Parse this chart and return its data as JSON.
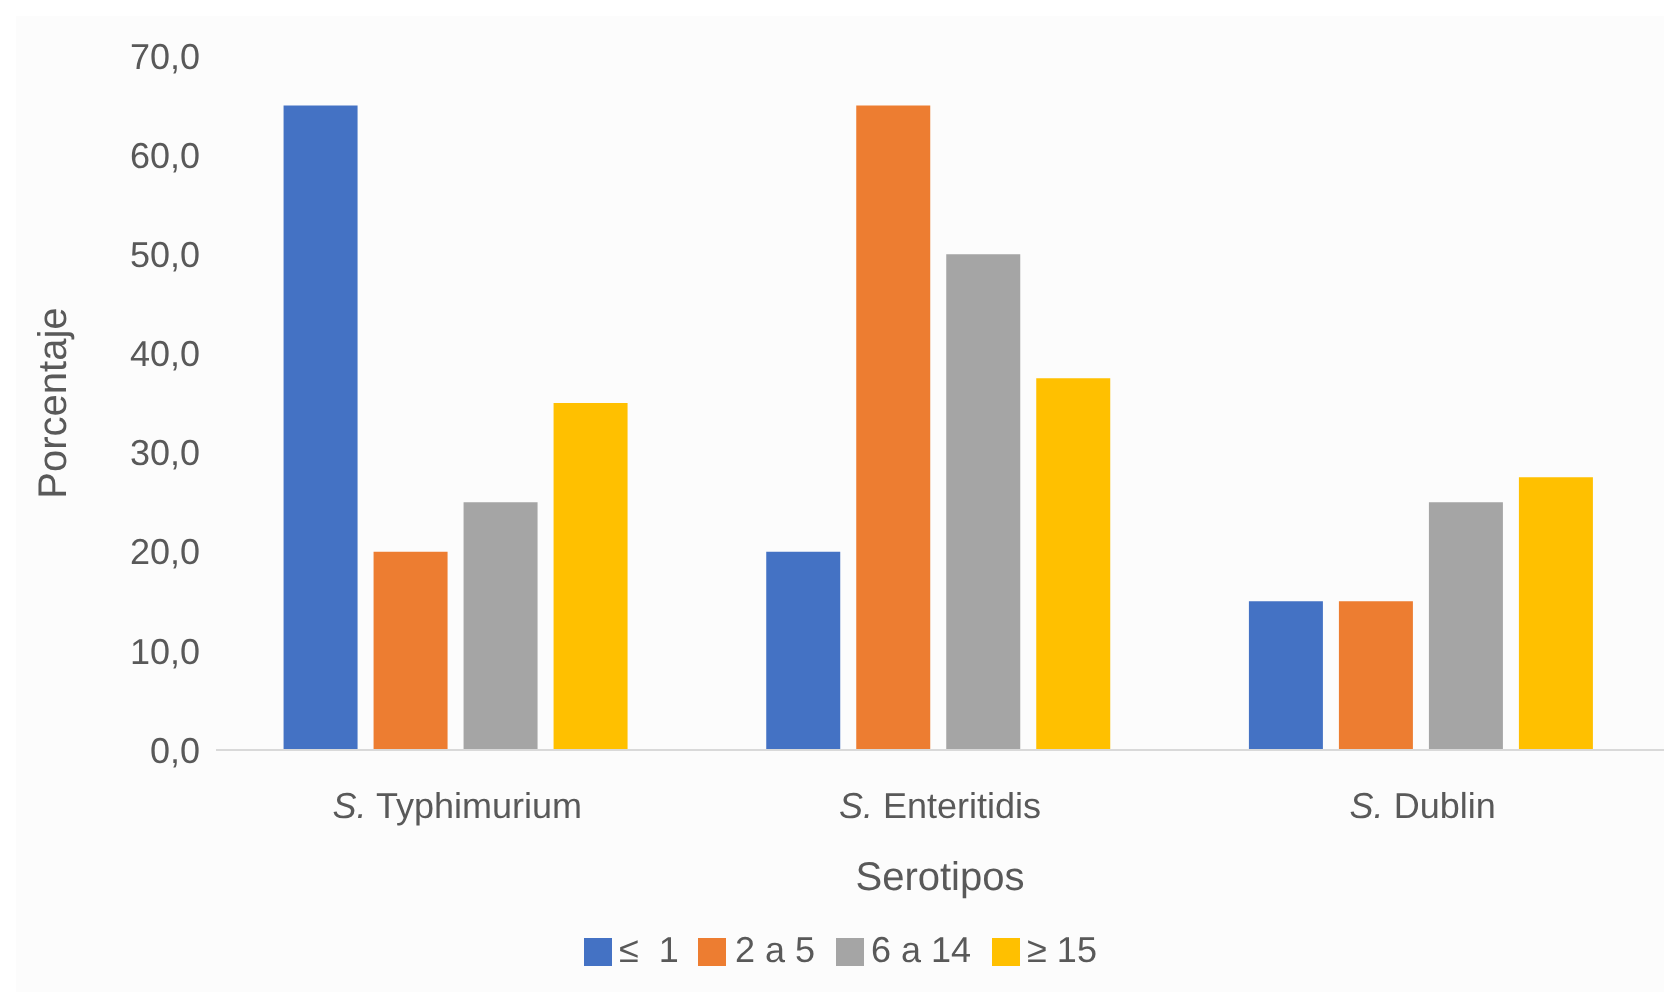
{
  "chart_data": {
    "type": "bar",
    "xlabel": "Serotipos",
    "ylabel": "Porcentaje",
    "categories": [
      "S. Typhimurium",
      "S. Enteritidis",
      "S. Dublin"
    ],
    "series": [
      {
        "name": "≤  1",
        "color": "#4472c4",
        "values": [
          65,
          20,
          15
        ]
      },
      {
        "name": "2 a 5",
        "color": "#ed7d31",
        "values": [
          20,
          65,
          15
        ]
      },
      {
        "name": "6 a 14",
        "color": "#a5a5a5",
        "values": [
          25,
          50,
          25
        ]
      },
      {
        "name": "≥ 15",
        "color": "#ffc000",
        "values": [
          35,
          37.5,
          27.5
        ]
      }
    ],
    "ylim": [
      0,
      70
    ],
    "yticks": [
      {
        "value": 0,
        "label": "0,0"
      },
      {
        "value": 10,
        "label": "10,0"
      },
      {
        "value": 20,
        "label": "20,0"
      },
      {
        "value": 30,
        "label": "30,0"
      },
      {
        "value": 40,
        "label": "40,0"
      },
      {
        "value": 50,
        "label": "50,0"
      },
      {
        "value": 60,
        "label": "60,0"
      },
      {
        "value": 70,
        "label": "70,0"
      }
    ],
    "grid": false,
    "legend": "bottom"
  }
}
